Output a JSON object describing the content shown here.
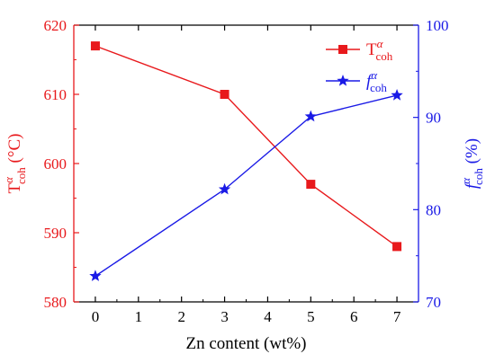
{
  "chart_data": {
    "type": "line",
    "xlabel": "Zn content (wt%)",
    "x_ticks": [
      "0",
      "1",
      "2",
      "3",
      "4",
      "5",
      "6",
      "7"
    ],
    "xlim": [
      -0.5,
      7.5
    ],
    "left_axis": {
      "label_main": "T",
      "label_sup": "α",
      "label_sub": "coh",
      "label_unit": " (°C)",
      "ylim": [
        580,
        620
      ],
      "ticks": [
        "580",
        "590",
        "600",
        "610",
        "620"
      ],
      "color": "#e8191c"
    },
    "right_axis": {
      "label_main": "f",
      "label_sup": "α",
      "label_sub": "coh",
      "label_unit": " (%)",
      "ylim": [
        70,
        100
      ],
      "ticks": [
        "70",
        "80",
        "90",
        "100"
      ],
      "color": "#1a1ae6"
    },
    "series": [
      {
        "name_main": "T",
        "name_sup": "α",
        "name_sub": "coh",
        "axis": "left",
        "marker": "square",
        "color": "#e8191c",
        "x": [
          0,
          3,
          5,
          7
        ],
        "y": [
          617,
          610,
          597,
          588
        ]
      },
      {
        "name_main": "f",
        "name_sup": "α",
        "name_sub": "coh",
        "axis": "right",
        "marker": "star",
        "color": "#1a1ae6",
        "x": [
          0,
          3,
          5,
          7
        ],
        "y": [
          72.8,
          82.2,
          90.1,
          92.4
        ]
      }
    ],
    "legend_position": "top-right",
    "grid": false
  }
}
